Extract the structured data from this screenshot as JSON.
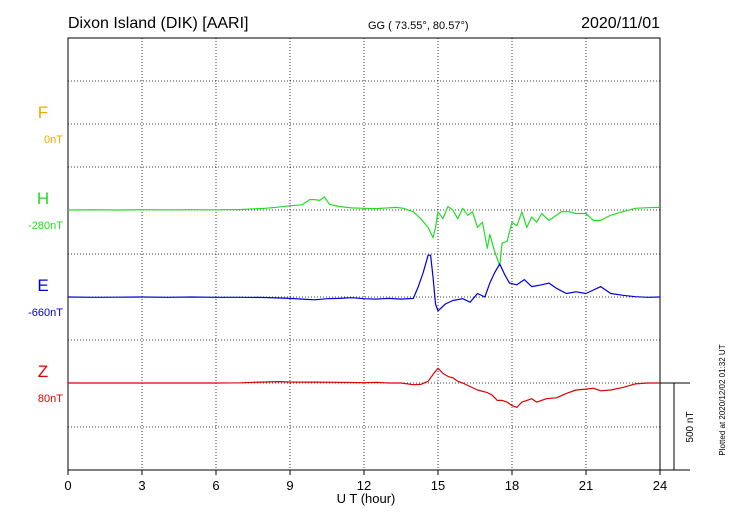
{
  "header": {
    "station": "Dixon Island (DIK)  [AARI]",
    "coords": "GG ( 73.55°,  80.57°)",
    "date": "2020/11/01"
  },
  "footer": {
    "xlabel": "U T (hour)",
    "plotted": "Plotted at 2020/12/02 01:32 UT",
    "scale": "500 nT"
  },
  "colors": {
    "F": "#f0a800",
    "H": "#22dd22",
    "E": "#0000dd",
    "Z": "#dd0000",
    "axis": "#000000"
  },
  "chart_data": {
    "type": "line",
    "xlabel": "U T (hour)",
    "x_ticks": [
      0,
      3,
      6,
      9,
      12,
      15,
      18,
      21,
      24
    ],
    "xlim": [
      0,
      24
    ],
    "grid": true,
    "scale_bar_nT": 500,
    "series": [
      {
        "name": "F",
        "baseline_label": "0nT",
        "baseline": 0,
        "points": []
      },
      {
        "name": "H",
        "baseline_label": "-280nT",
        "baseline": -280,
        "points": [
          [
            0,
            -280
          ],
          [
            1,
            -278
          ],
          [
            2,
            -280
          ],
          [
            3,
            -278
          ],
          [
            4,
            -279
          ],
          [
            5,
            -278
          ],
          [
            6,
            -279
          ],
          [
            7,
            -277
          ],
          [
            8,
            -270
          ],
          [
            8.5,
            -264
          ],
          [
            9,
            -255
          ],
          [
            9.5,
            -250
          ],
          [
            9.8,
            -220
          ],
          [
            10,
            -220
          ],
          [
            10.2,
            -225
          ],
          [
            10.4,
            -205
          ],
          [
            10.6,
            -248
          ],
          [
            11,
            -260
          ],
          [
            11.5,
            -268
          ],
          [
            12,
            -270
          ],
          [
            12.5,
            -272
          ],
          [
            13,
            -268
          ],
          [
            13.3,
            -265
          ],
          [
            13.6,
            -270
          ],
          [
            14,
            -290
          ],
          [
            14.3,
            -330
          ],
          [
            14.6,
            -380
          ],
          [
            14.8,
            -440
          ],
          [
            14.9,
            -380
          ],
          [
            15,
            -290
          ],
          [
            15.2,
            -330
          ],
          [
            15.4,
            -260
          ],
          [
            15.6,
            -280
          ],
          [
            15.8,
            -330
          ],
          [
            16,
            -270
          ],
          [
            16.2,
            -310
          ],
          [
            16.4,
            -290
          ],
          [
            16.6,
            -380
          ],
          [
            16.8,
            -350
          ],
          [
            17,
            -500
          ],
          [
            17.1,
            -420
          ],
          [
            17.3,
            -520
          ],
          [
            17.5,
            -600
          ],
          [
            17.6,
            -470
          ],
          [
            17.8,
            -460
          ],
          [
            18,
            -350
          ],
          [
            18.2,
            -370
          ],
          [
            18.4,
            -290
          ],
          [
            18.6,
            -380
          ],
          [
            18.8,
            -320
          ],
          [
            19,
            -350
          ],
          [
            19.2,
            -300
          ],
          [
            19.5,
            -340
          ],
          [
            19.8,
            -310
          ],
          [
            20,
            -290
          ],
          [
            20.3,
            -290
          ],
          [
            20.6,
            -300
          ],
          [
            21,
            -300
          ],
          [
            21.3,
            -340
          ],
          [
            21.6,
            -340
          ],
          [
            22,
            -310
          ],
          [
            22.5,
            -290
          ],
          [
            23,
            -270
          ],
          [
            23.5,
            -267
          ],
          [
            24,
            -265
          ]
        ]
      },
      {
        "name": "E",
        "baseline_label": "-660nT",
        "baseline": -660,
        "points": [
          [
            0,
            -660
          ],
          [
            1,
            -662
          ],
          [
            2,
            -661
          ],
          [
            3,
            -660
          ],
          [
            4,
            -662
          ],
          [
            5,
            -660
          ],
          [
            6,
            -662
          ],
          [
            7,
            -662
          ],
          [
            8,
            -663
          ],
          [
            9,
            -668
          ],
          [
            9.5,
            -672
          ],
          [
            10,
            -676
          ],
          [
            10.5,
            -670
          ],
          [
            11,
            -668
          ],
          [
            11.5,
            -664
          ],
          [
            12,
            -670
          ],
          [
            12.5,
            -672
          ],
          [
            13,
            -668
          ],
          [
            13.5,
            -672
          ],
          [
            14,
            -668
          ],
          [
            14.2,
            -600
          ],
          [
            14.4,
            -520
          ],
          [
            14.6,
            -420
          ],
          [
            14.7,
            -420
          ],
          [
            14.8,
            -550
          ],
          [
            14.9,
            -700
          ],
          [
            15,
            -740
          ],
          [
            15.3,
            -700
          ],
          [
            15.6,
            -680
          ],
          [
            16,
            -670
          ],
          [
            16.3,
            -690
          ],
          [
            16.6,
            -640
          ],
          [
            16.9,
            -660
          ],
          [
            17.1,
            -580
          ],
          [
            17.3,
            -520
          ],
          [
            17.5,
            -470
          ],
          [
            17.7,
            -530
          ],
          [
            17.9,
            -580
          ],
          [
            18.2,
            -590
          ],
          [
            18.5,
            -560
          ],
          [
            18.8,
            -600
          ],
          [
            19.2,
            -590
          ],
          [
            19.5,
            -580
          ],
          [
            19.8,
            -610
          ],
          [
            20.2,
            -640
          ],
          [
            20.6,
            -630
          ],
          [
            21,
            -640
          ],
          [
            21.3,
            -620
          ],
          [
            21.6,
            -600
          ],
          [
            22,
            -640
          ],
          [
            22.5,
            -650
          ],
          [
            23,
            -658
          ],
          [
            23.5,
            -662
          ],
          [
            24,
            -660
          ]
        ]
      },
      {
        "name": "Z",
        "baseline_label": "80nT",
        "baseline": 80,
        "points": [
          [
            0,
            80
          ],
          [
            2,
            80
          ],
          [
            4,
            80
          ],
          [
            6,
            80
          ],
          [
            7,
            81
          ],
          [
            7.5,
            84
          ],
          [
            8,
            86
          ],
          [
            8.5,
            88
          ],
          [
            9,
            86
          ],
          [
            10,
            85
          ],
          [
            11,
            84
          ],
          [
            12,
            82
          ],
          [
            12.5,
            84
          ],
          [
            13,
            80
          ],
          [
            13.5,
            80
          ],
          [
            14,
            70
          ],
          [
            14.3,
            72
          ],
          [
            14.6,
            90
          ],
          [
            14.8,
            130
          ],
          [
            15,
            165
          ],
          [
            15.2,
            135
          ],
          [
            15.4,
            118
          ],
          [
            15.6,
            110
          ],
          [
            15.8,
            90
          ],
          [
            16,
            80
          ],
          [
            16.3,
            60
          ],
          [
            16.6,
            40
          ],
          [
            17,
            25
          ],
          [
            17.2,
            10
          ],
          [
            17.4,
            -20
          ],
          [
            17.6,
            -20
          ],
          [
            17.8,
            -30
          ],
          [
            18,
            -50
          ],
          [
            18.2,
            -60
          ],
          [
            18.4,
            -30
          ],
          [
            18.6,
            -20
          ],
          [
            18.8,
            -10
          ],
          [
            19,
            -30
          ],
          [
            19.4,
            -10
          ],
          [
            19.8,
            -5
          ],
          [
            20.2,
            20
          ],
          [
            20.6,
            40
          ],
          [
            21,
            45
          ],
          [
            21.3,
            50
          ],
          [
            21.6,
            35
          ],
          [
            22,
            40
          ],
          [
            22.5,
            55
          ],
          [
            23,
            75
          ],
          [
            23.5,
            80
          ],
          [
            24,
            80
          ]
        ]
      }
    ]
  }
}
